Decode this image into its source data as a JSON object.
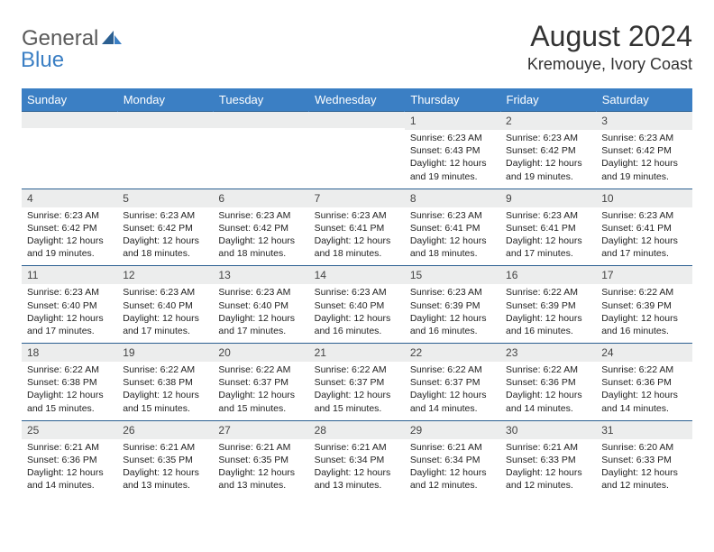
{
  "brand": {
    "part1": "General",
    "part2": "Blue"
  },
  "title": "August 2024",
  "location": "Kremouye, Ivory Coast",
  "colors": {
    "header_bg": "#3b7fc4",
    "row_border": "#2b5f91",
    "daynum_bg": "#eceded",
    "text": "#222222"
  },
  "dow": [
    "Sunday",
    "Monday",
    "Tuesday",
    "Wednesday",
    "Thursday",
    "Friday",
    "Saturday"
  ],
  "weeks": [
    [
      {
        "n": "",
        "sr": "",
        "ss": "",
        "dl": ""
      },
      {
        "n": "",
        "sr": "",
        "ss": "",
        "dl": ""
      },
      {
        "n": "",
        "sr": "",
        "ss": "",
        "dl": ""
      },
      {
        "n": "",
        "sr": "",
        "ss": "",
        "dl": ""
      },
      {
        "n": "1",
        "sr": "6:23 AM",
        "ss": "6:43 PM",
        "dl": "12 hours and 19 minutes."
      },
      {
        "n": "2",
        "sr": "6:23 AM",
        "ss": "6:42 PM",
        "dl": "12 hours and 19 minutes."
      },
      {
        "n": "3",
        "sr": "6:23 AM",
        "ss": "6:42 PM",
        "dl": "12 hours and 19 minutes."
      }
    ],
    [
      {
        "n": "4",
        "sr": "6:23 AM",
        "ss": "6:42 PM",
        "dl": "12 hours and 19 minutes."
      },
      {
        "n": "5",
        "sr": "6:23 AM",
        "ss": "6:42 PM",
        "dl": "12 hours and 18 minutes."
      },
      {
        "n": "6",
        "sr": "6:23 AM",
        "ss": "6:42 PM",
        "dl": "12 hours and 18 minutes."
      },
      {
        "n": "7",
        "sr": "6:23 AM",
        "ss": "6:41 PM",
        "dl": "12 hours and 18 minutes."
      },
      {
        "n": "8",
        "sr": "6:23 AM",
        "ss": "6:41 PM",
        "dl": "12 hours and 18 minutes."
      },
      {
        "n": "9",
        "sr": "6:23 AM",
        "ss": "6:41 PM",
        "dl": "12 hours and 17 minutes."
      },
      {
        "n": "10",
        "sr": "6:23 AM",
        "ss": "6:41 PM",
        "dl": "12 hours and 17 minutes."
      }
    ],
    [
      {
        "n": "11",
        "sr": "6:23 AM",
        "ss": "6:40 PM",
        "dl": "12 hours and 17 minutes."
      },
      {
        "n": "12",
        "sr": "6:23 AM",
        "ss": "6:40 PM",
        "dl": "12 hours and 17 minutes."
      },
      {
        "n": "13",
        "sr": "6:23 AM",
        "ss": "6:40 PM",
        "dl": "12 hours and 17 minutes."
      },
      {
        "n": "14",
        "sr": "6:23 AM",
        "ss": "6:40 PM",
        "dl": "12 hours and 16 minutes."
      },
      {
        "n": "15",
        "sr": "6:23 AM",
        "ss": "6:39 PM",
        "dl": "12 hours and 16 minutes."
      },
      {
        "n": "16",
        "sr": "6:22 AM",
        "ss": "6:39 PM",
        "dl": "12 hours and 16 minutes."
      },
      {
        "n": "17",
        "sr": "6:22 AM",
        "ss": "6:39 PM",
        "dl": "12 hours and 16 minutes."
      }
    ],
    [
      {
        "n": "18",
        "sr": "6:22 AM",
        "ss": "6:38 PM",
        "dl": "12 hours and 15 minutes."
      },
      {
        "n": "19",
        "sr": "6:22 AM",
        "ss": "6:38 PM",
        "dl": "12 hours and 15 minutes."
      },
      {
        "n": "20",
        "sr": "6:22 AM",
        "ss": "6:37 PM",
        "dl": "12 hours and 15 minutes."
      },
      {
        "n": "21",
        "sr": "6:22 AM",
        "ss": "6:37 PM",
        "dl": "12 hours and 15 minutes."
      },
      {
        "n": "22",
        "sr": "6:22 AM",
        "ss": "6:37 PM",
        "dl": "12 hours and 14 minutes."
      },
      {
        "n": "23",
        "sr": "6:22 AM",
        "ss": "6:36 PM",
        "dl": "12 hours and 14 minutes."
      },
      {
        "n": "24",
        "sr": "6:22 AM",
        "ss": "6:36 PM",
        "dl": "12 hours and 14 minutes."
      }
    ],
    [
      {
        "n": "25",
        "sr": "6:21 AM",
        "ss": "6:36 PM",
        "dl": "12 hours and 14 minutes."
      },
      {
        "n": "26",
        "sr": "6:21 AM",
        "ss": "6:35 PM",
        "dl": "12 hours and 13 minutes."
      },
      {
        "n": "27",
        "sr": "6:21 AM",
        "ss": "6:35 PM",
        "dl": "12 hours and 13 minutes."
      },
      {
        "n": "28",
        "sr": "6:21 AM",
        "ss": "6:34 PM",
        "dl": "12 hours and 13 minutes."
      },
      {
        "n": "29",
        "sr": "6:21 AM",
        "ss": "6:34 PM",
        "dl": "12 hours and 12 minutes."
      },
      {
        "n": "30",
        "sr": "6:21 AM",
        "ss": "6:33 PM",
        "dl": "12 hours and 12 minutes."
      },
      {
        "n": "31",
        "sr": "6:20 AM",
        "ss": "6:33 PM",
        "dl": "12 hours and 12 minutes."
      }
    ]
  ],
  "labels": {
    "sunrise": "Sunrise:",
    "sunset": "Sunset:",
    "daylight": "Daylight:"
  }
}
